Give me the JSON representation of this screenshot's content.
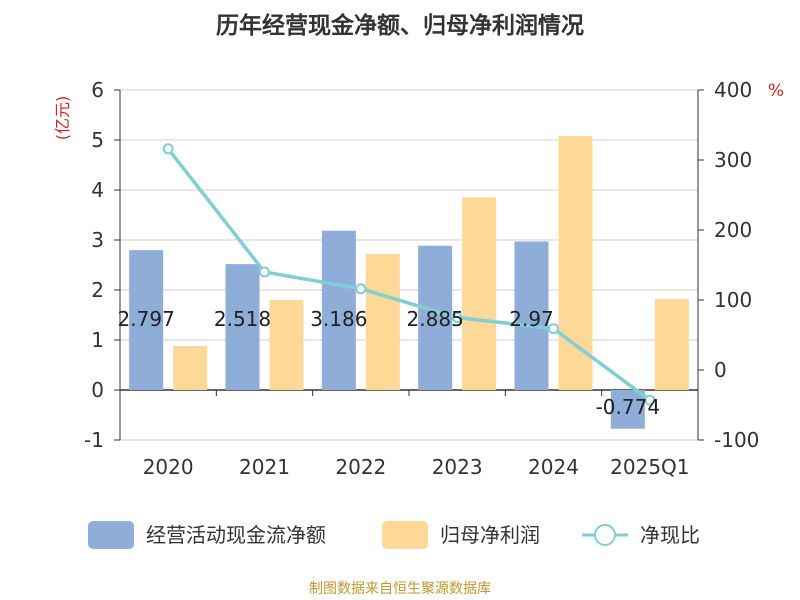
{
  "title": "历年经营现金净额、归母净利润情况",
  "source": "制图数据来自恒生聚源数据库",
  "colors": {
    "cash_flow": "#8eadd9",
    "net_profit": "#fdd896",
    "ratio": "#7fcfd7",
    "axis_unit": "#e02020",
    "source": "#c8952a"
  },
  "chart_data": {
    "type": "bar",
    "categories": [
      "2020",
      "2021",
      "2022",
      "2023",
      "2024",
      "2025Q1"
    ],
    "left_axis": {
      "unit": "(亿元)",
      "ylim": [
        -1,
        6
      ],
      "ticks": [
        "-1",
        "0",
        "1",
        "2",
        "3",
        "4",
        "5",
        "6"
      ]
    },
    "right_axis": {
      "unit": "%",
      "ylim": [
        -100,
        400
      ],
      "ticks": [
        "-100",
        "0",
        "100",
        "200",
        "300",
        "400"
      ]
    },
    "series": [
      {
        "name": "经营活动现金流净额",
        "type": "bar",
        "axis": "left",
        "values": [
          2.797,
          2.518,
          3.186,
          2.885,
          2.97,
          -0.774
        ],
        "labels": [
          "2.797",
          "2.518",
          "3.186",
          "2.885",
          "2.97",
          "-0.774"
        ]
      },
      {
        "name": "归母净利润",
        "type": "bar",
        "axis": "left",
        "values": [
          0.88,
          1.8,
          2.72,
          3.85,
          5.08,
          1.82
        ]
      },
      {
        "name": "净现比",
        "type": "line",
        "axis": "right",
        "values": [
          316,
          140,
          116,
          75,
          59,
          -43
        ]
      }
    ],
    "legend_position": "bottom",
    "grid": true
  }
}
